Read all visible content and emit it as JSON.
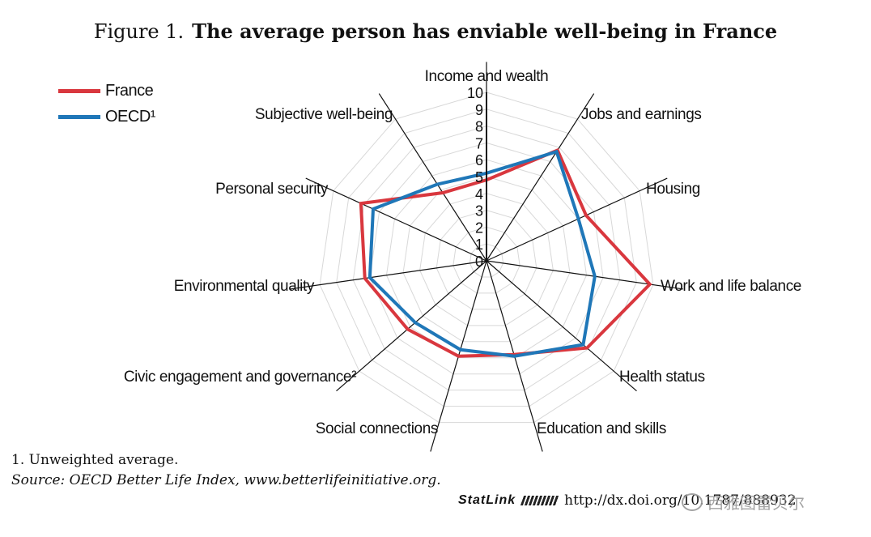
{
  "header": {
    "figure_label": "Figure 1.",
    "headline": "The average person has enviable well-being in France"
  },
  "legend": [
    {
      "label": "France",
      "color": "#d9373e"
    },
    {
      "label": "OECD¹",
      "color": "#1f77b8"
    }
  ],
  "chart_data": {
    "type": "radar",
    "title": "The average person has enviable well-being in France",
    "scale": {
      "min": 0,
      "max": 10,
      "ticks": [
        "0",
        "1",
        "2",
        "3",
        "4",
        "5",
        "6",
        "7",
        "8",
        "9",
        "10"
      ]
    },
    "axes": [
      "Income and wealth",
      "Jobs and earnings",
      "Housing",
      "Work and life balance",
      "Health status",
      "Education and skills",
      "Social connections",
      "Civic engagement and governance²",
      "Environmental quality",
      "Personal security",
      "Subjective well-being"
    ],
    "series": [
      {
        "name": "France",
        "color": "#d9373e",
        "values": [
          4.8,
          7.8,
          6.5,
          9.8,
          7.9,
          5.8,
          5.9,
          6.2,
          7.3,
          8.2,
          4.8
        ]
      },
      {
        "name": "OECD¹",
        "color": "#1f77b8",
        "values": [
          5.2,
          7.7,
          6.0,
          6.5,
          7.6,
          5.9,
          5.5,
          5.6,
          7.0,
          7.4,
          5.4
        ]
      }
    ],
    "grid": true
  },
  "notes": {
    "footnote": "1.  Unweighted average.",
    "source": "Source:  OECD Better Life Index, www.betterlifeinitiative.org."
  },
  "statlink": {
    "logo_text": "StatLink",
    "url": "http://dx.doi.org/10.1787/888932"
  },
  "watermark": {
    "text": "西雅图雷贝尔"
  }
}
